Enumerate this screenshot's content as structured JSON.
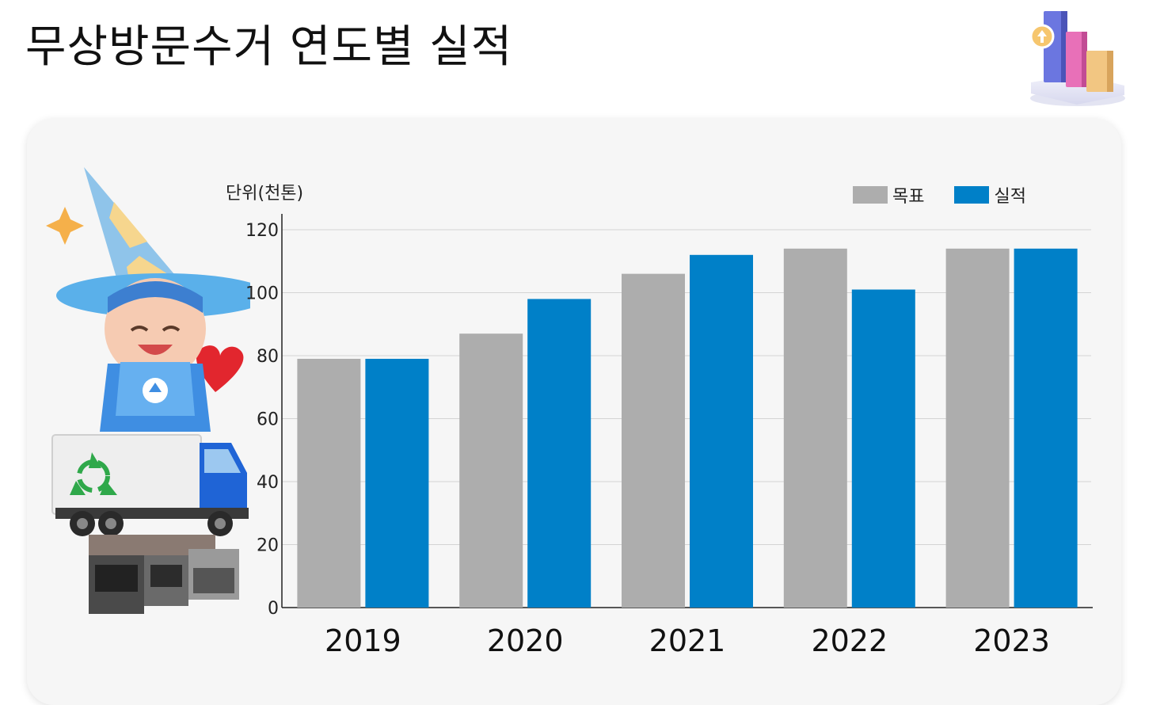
{
  "page": {
    "title": "무상방문수거 연도별 실적"
  },
  "chart_data": {
    "type": "bar",
    "title": "",
    "unit_label": "단위(천톤)",
    "categories": [
      "2019",
      "2020",
      "2021",
      "2022",
      "2023"
    ],
    "series": [
      {
        "name": "목표",
        "color": "#adadad",
        "values": [
          79,
          87,
          106,
          114,
          114
        ]
      },
      {
        "name": "실적",
        "color": "#0080c8",
        "values": [
          79,
          98,
          112,
          101,
          114
        ]
      }
    ],
    "ylim": [
      0,
      120
    ],
    "yticks": [
      0,
      20,
      40,
      60,
      80,
      100,
      120
    ],
    "grid": true,
    "legend_position": "top-right"
  },
  "illustrations": {
    "top_icon": "bar-chart-3d-icon",
    "mascot": "wizard-mascot-with-recycling-truck-and-appliances"
  }
}
